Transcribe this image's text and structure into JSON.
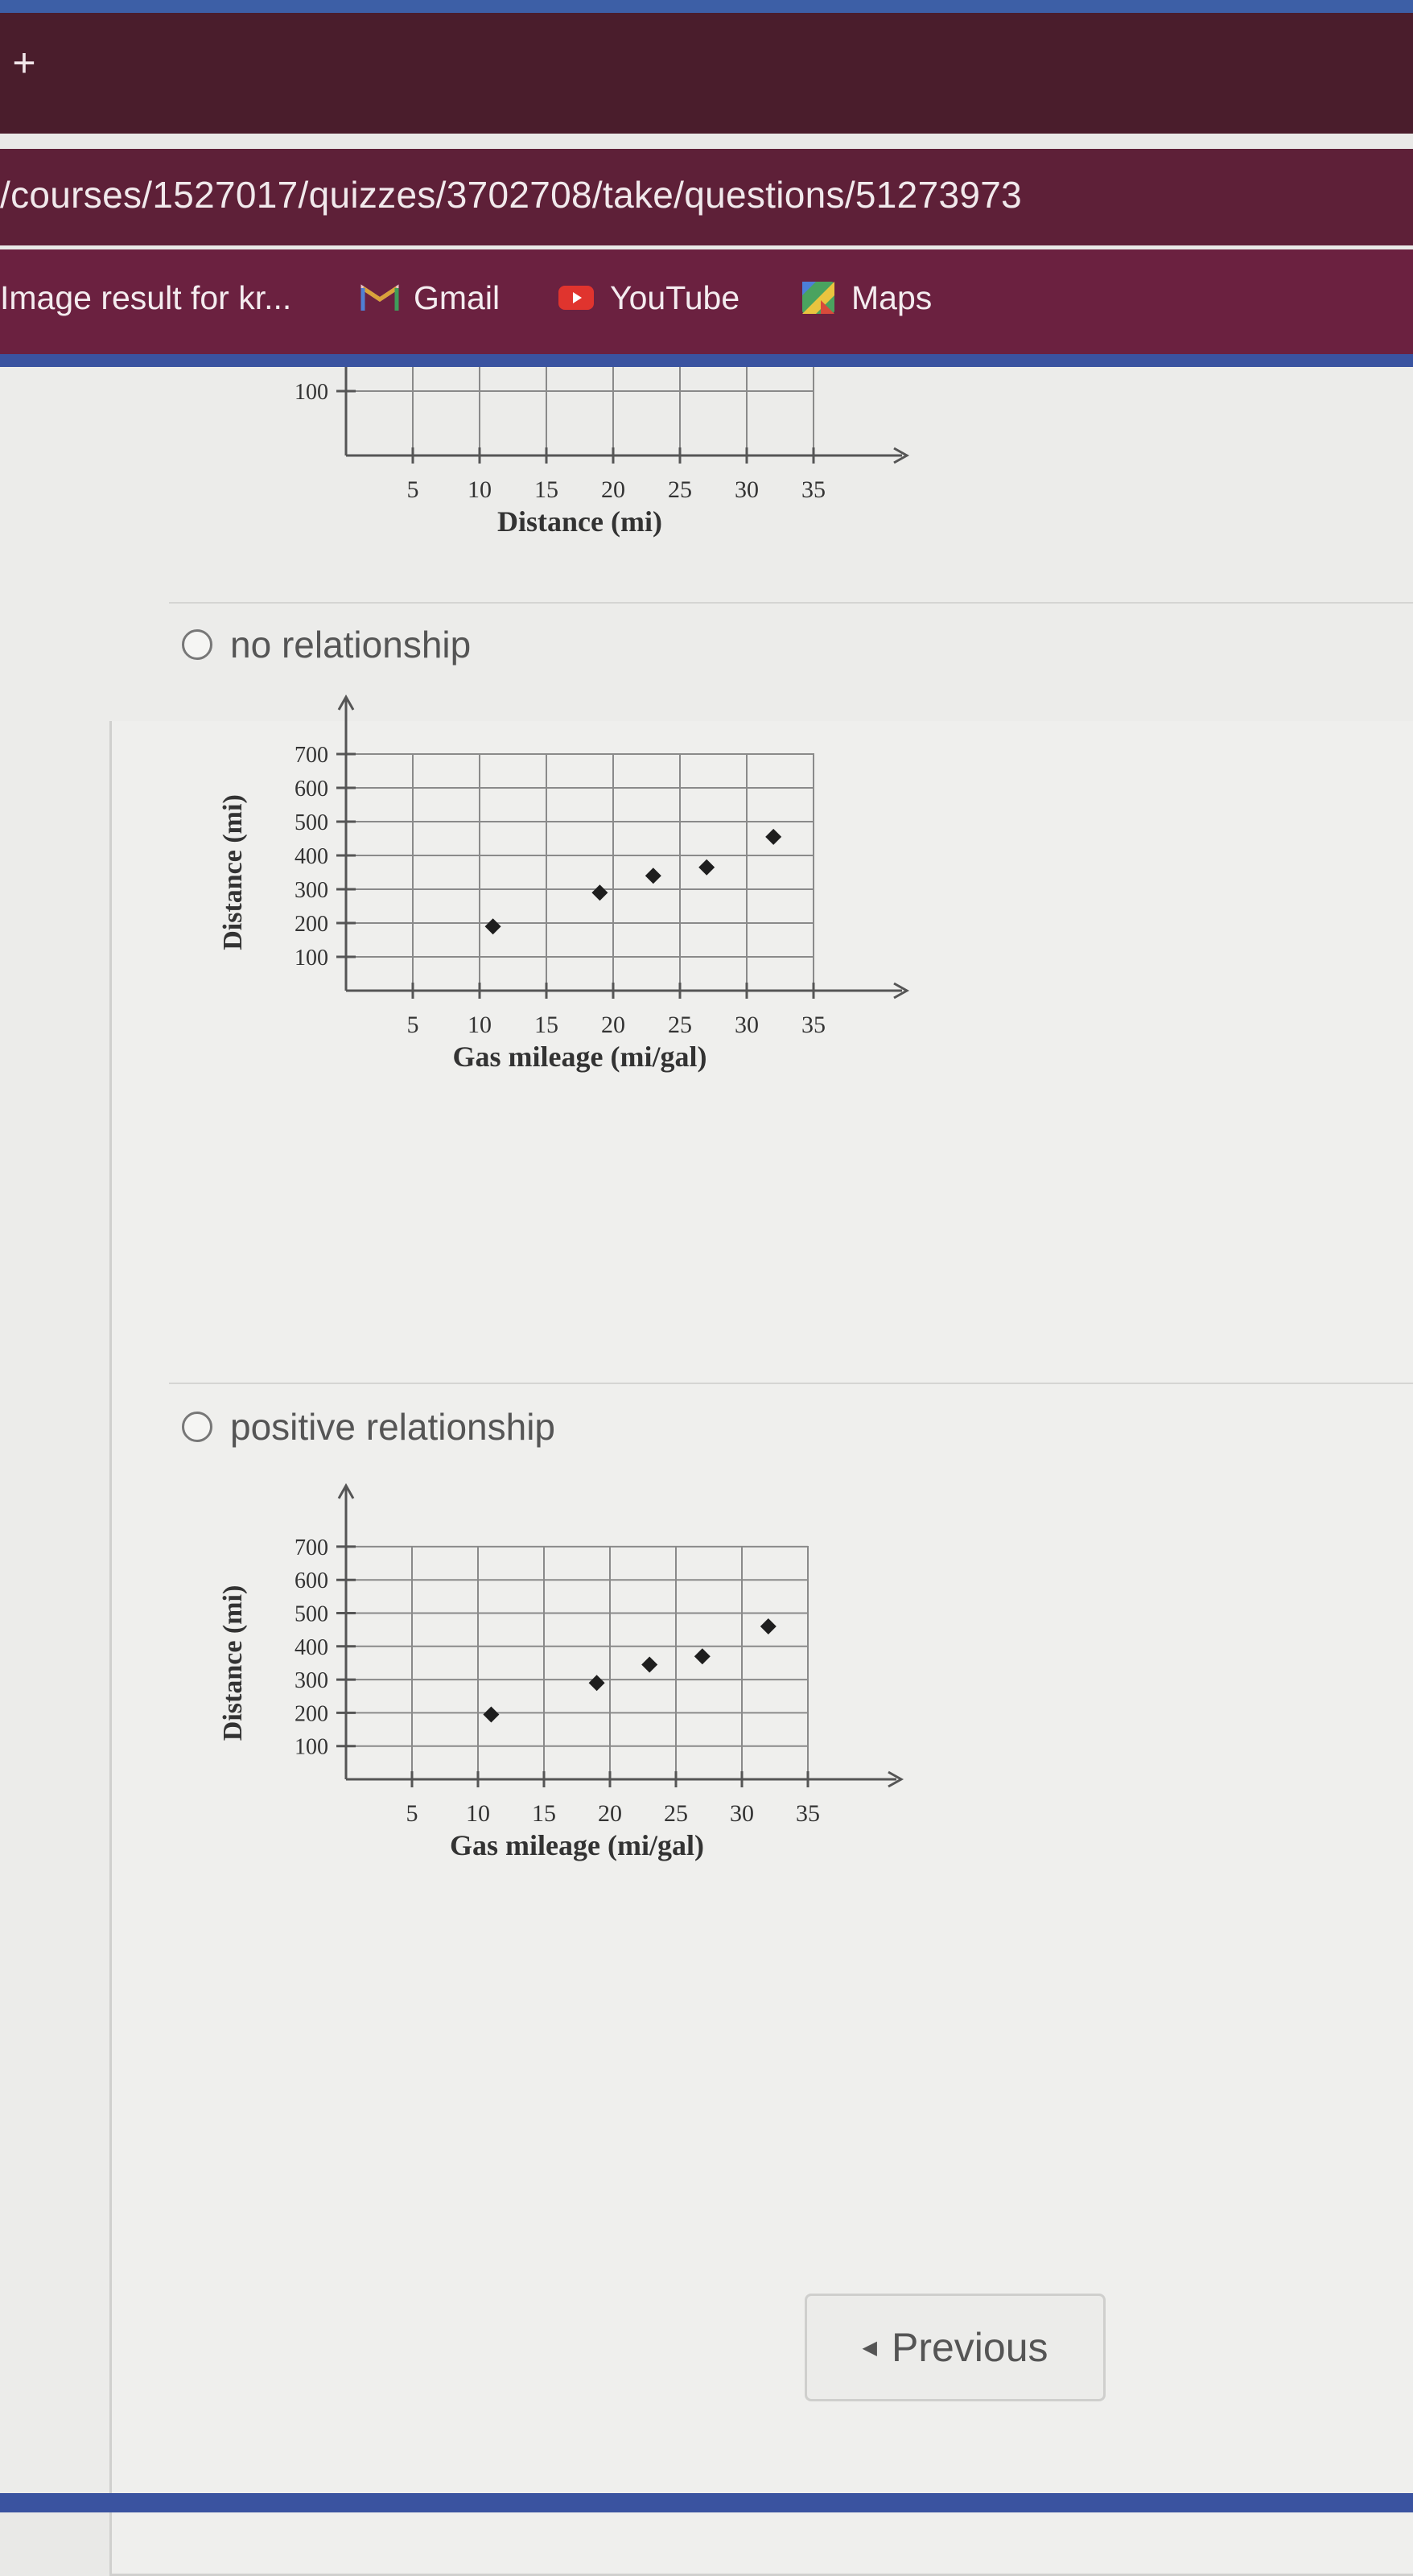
{
  "browser": {
    "new_tab_symbol": "+",
    "url": "/courses/1527017/quizzes/3702708/take/questions/51273973",
    "bookmarks": [
      {
        "label": "Image result for kr...",
        "icon": "google-image-icon"
      },
      {
        "label": "Gmail",
        "icon": "gmail-icon"
      },
      {
        "label": "YouTube",
        "icon": "youtube-icon"
      },
      {
        "label": "Maps",
        "icon": "maps-icon"
      }
    ]
  },
  "options": [
    {
      "label": "no relationship"
    },
    {
      "label": "positive relationship"
    }
  ],
  "navigation": {
    "previous_label": "Previous"
  },
  "chart_data": [
    {
      "type": "scatter",
      "title": "",
      "xlabel": "Distance (mi)",
      "ylabel": "",
      "xlim": [
        0,
        35
      ],
      "x_ticks": [
        5,
        10,
        15,
        20,
        25,
        30,
        35
      ],
      "y_ticks": [
        100
      ],
      "points": [],
      "grid": true,
      "note": "partially visible chart, cropped at top"
    },
    {
      "type": "scatter",
      "title": "",
      "xlabel": "Gas mileage (mi/gal)",
      "ylabel": "Distance (mi)",
      "xlim": [
        0,
        35
      ],
      "ylim": [
        0,
        700
      ],
      "x_ticks": [
        5,
        10,
        15,
        20,
        25,
        30,
        35
      ],
      "y_ticks": [
        100,
        200,
        300,
        400,
        500,
        600,
        700
      ],
      "grid": true,
      "points": [
        {
          "x": 11,
          "y": 190
        },
        {
          "x": 19,
          "y": 290
        },
        {
          "x": 23,
          "y": 340
        },
        {
          "x": 27,
          "y": 365
        },
        {
          "x": 32,
          "y": 455
        }
      ]
    },
    {
      "type": "scatter",
      "title": "",
      "xlabel": "Gas mileage (mi/gal)",
      "ylabel": "Distance (mi)",
      "xlim": [
        0,
        35
      ],
      "ylim": [
        0,
        700
      ],
      "x_ticks": [
        5,
        10,
        15,
        20,
        25,
        30,
        35
      ],
      "y_ticks": [
        100,
        200,
        300,
        400,
        500,
        600,
        700
      ],
      "grid": true,
      "points": [
        {
          "x": 11,
          "y": 195
        },
        {
          "x": 19,
          "y": 290
        },
        {
          "x": 23,
          "y": 345
        },
        {
          "x": 27,
          "y": 370
        },
        {
          "x": 32,
          "y": 460
        }
      ]
    }
  ]
}
